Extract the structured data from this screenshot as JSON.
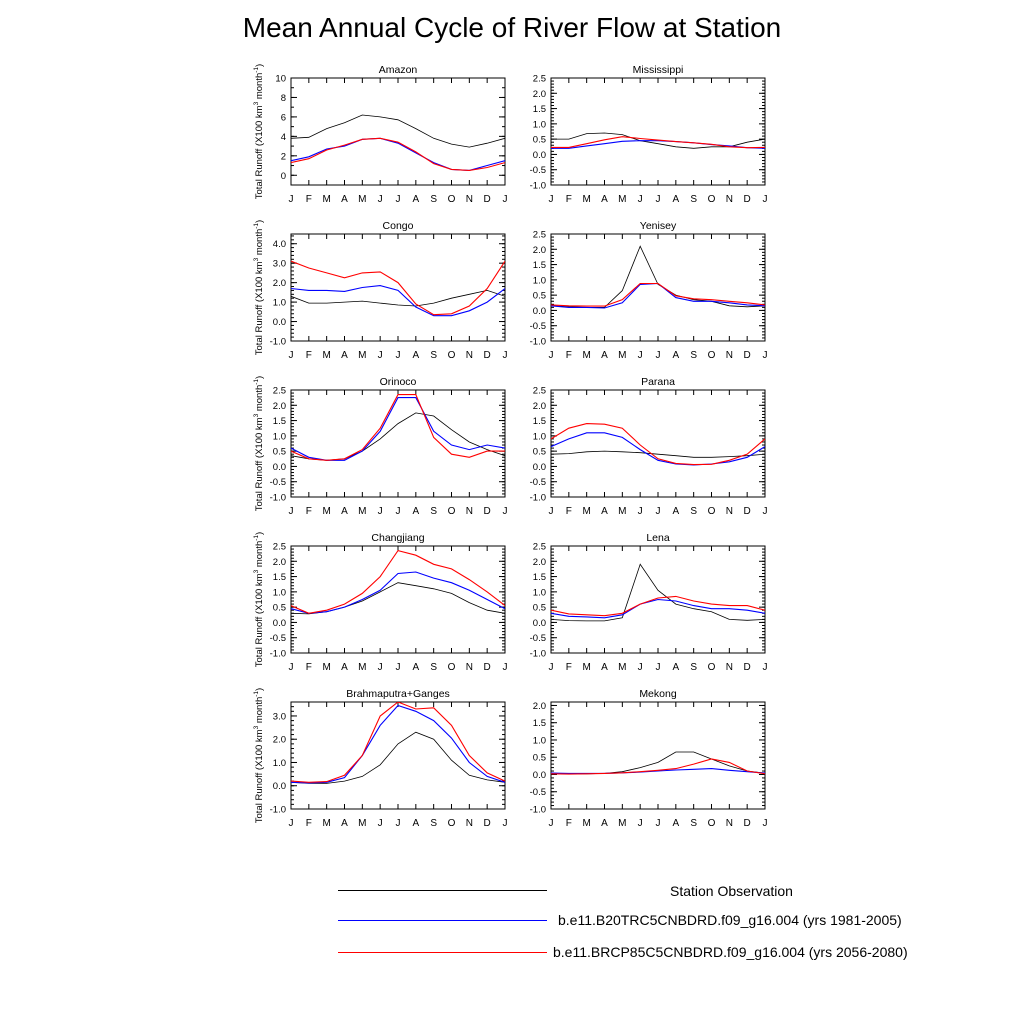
{
  "title": "Mean Annual Cycle of River Flow at Station",
  "chart_data": {
    "type": "line",
    "months": [
      "J",
      "F",
      "M",
      "A",
      "M",
      "J",
      "J",
      "A",
      "S",
      "O",
      "N",
      "D",
      "J"
    ],
    "ylabel": "Total Runoff (X100 km",
    "ylabel_sup": "3",
    "ylabel_mid": " month",
    "ylabel_sup2": "-1",
    "ylabel_end": ")",
    "colors": {
      "obs": "#000000",
      "hist": "#0000ff",
      "fut": "#ff0000"
    },
    "legend": [
      {
        "key": "obs",
        "label": "Station Observation"
      },
      {
        "key": "hist",
        "label": "b.e11.B20TRC5CNBDRD.f09_g16.004 (yrs 1981-2005)"
      },
      {
        "key": "fut",
        "label": "b.e11.BRCP85C5CNBDRD.f09_g16.004 (yrs 2056-2080)"
      }
    ],
    "panels": [
      {
        "name": "Amazon",
        "ylim": [
          -1,
          10
        ],
        "ticks": [
          0,
          2,
          4,
          6,
          8,
          10
        ],
        "tick_labels": [
          "0",
          "2",
          "4",
          "6",
          "8",
          "10"
        ],
        "minor_step": 1,
        "obs": [
          3.8,
          3.9,
          4.8,
          5.4,
          6.2,
          6.0,
          5.7,
          4.8,
          3.8,
          3.2,
          2.9,
          3.3,
          3.8
        ],
        "hist": [
          1.5,
          1.9,
          2.7,
          3.0,
          3.7,
          3.8,
          3.3,
          2.3,
          1.3,
          0.6,
          0.5,
          1.0,
          1.5
        ],
        "fut": [
          1.3,
          1.7,
          2.6,
          3.1,
          3.7,
          3.8,
          3.4,
          2.4,
          1.2,
          0.6,
          0.5,
          0.8,
          1.3
        ]
      },
      {
        "name": "Mississippi",
        "ylim": [
          -1,
          2.5
        ],
        "ticks": [
          -1,
          -0.5,
          0,
          0.5,
          1,
          1.5,
          2,
          2.5
        ],
        "tick_labels": [
          "-1.0",
          "-0.5",
          "0.0",
          "0.5",
          "1.0",
          "1.5",
          "2.0",
          "2.5"
        ],
        "minor_step": 0.1,
        "obs": [
          0.5,
          0.5,
          0.68,
          0.7,
          0.65,
          0.45,
          0.35,
          0.25,
          0.2,
          0.25,
          0.25,
          0.4,
          0.5
        ],
        "hist": [
          0.2,
          0.2,
          0.28,
          0.35,
          0.43,
          0.45,
          0.45,
          0.42,
          0.38,
          0.32,
          0.28,
          0.22,
          0.2
        ],
        "fut": [
          0.23,
          0.23,
          0.35,
          0.48,
          0.58,
          0.52,
          0.47,
          0.42,
          0.38,
          0.33,
          0.25,
          0.22,
          0.23
        ]
      },
      {
        "name": "Congo",
        "ylim": [
          -1,
          4.5
        ],
        "ticks": [
          -1,
          0,
          1,
          2,
          3,
          4
        ],
        "tick_labels": [
          "-1.0",
          "0.0",
          "1.0",
          "2.0",
          "3.0",
          "4.0"
        ],
        "minor_step": 0.2,
        "obs": [
          1.3,
          0.95,
          0.95,
          1.0,
          1.05,
          0.95,
          0.85,
          0.8,
          0.95,
          1.2,
          1.4,
          1.6,
          1.3
        ],
        "hist": [
          1.7,
          1.6,
          1.6,
          1.55,
          1.75,
          1.85,
          1.6,
          0.75,
          0.3,
          0.3,
          0.55,
          1.0,
          1.7
        ],
        "fut": [
          3.1,
          2.75,
          2.5,
          2.25,
          2.5,
          2.55,
          2.0,
          0.9,
          0.35,
          0.4,
          0.8,
          1.7,
          3.1
        ]
      },
      {
        "name": "Yenisey",
        "ylim": [
          -1,
          2.5
        ],
        "ticks": [
          -1,
          -0.5,
          0,
          0.5,
          1,
          1.5,
          2,
          2.5
        ],
        "tick_labels": [
          "-1.0",
          "-0.5",
          "0.0",
          "0.5",
          "1.0",
          "1.5",
          "2.0",
          "2.5"
        ],
        "minor_step": 0.1,
        "obs": [
          0.15,
          0.12,
          0.1,
          0.1,
          0.65,
          2.1,
          0.85,
          0.5,
          0.35,
          0.3,
          0.15,
          0.12,
          0.15
        ],
        "hist": [
          0.15,
          0.1,
          0.1,
          0.08,
          0.25,
          0.85,
          0.88,
          0.42,
          0.3,
          0.3,
          0.25,
          0.18,
          0.15
        ],
        "fut": [
          0.18,
          0.15,
          0.14,
          0.14,
          0.35,
          0.88,
          0.88,
          0.48,
          0.38,
          0.35,
          0.3,
          0.25,
          0.18
        ]
      },
      {
        "name": "Orinoco",
        "ylim": [
          -1,
          2.5
        ],
        "ticks": [
          -1,
          -0.5,
          0,
          0.5,
          1,
          1.5,
          2,
          2.5
        ],
        "tick_labels": [
          "-1.0",
          "-0.5",
          "0.0",
          "0.5",
          "1.0",
          "1.5",
          "2.0",
          "2.5"
        ],
        "minor_step": 0.1,
        "obs": [
          0.35,
          0.25,
          0.2,
          0.25,
          0.5,
          0.9,
          1.4,
          1.75,
          1.65,
          1.2,
          0.8,
          0.55,
          0.35
        ],
        "hist": [
          0.6,
          0.3,
          0.2,
          0.2,
          0.5,
          1.15,
          2.25,
          2.25,
          1.15,
          0.7,
          0.55,
          0.7,
          0.6
        ],
        "fut": [
          0.5,
          0.25,
          0.2,
          0.25,
          0.55,
          1.25,
          2.35,
          2.35,
          0.95,
          0.4,
          0.3,
          0.5,
          0.5
        ]
      },
      {
        "name": "Parana",
        "ylim": [
          -1,
          2.5
        ],
        "ticks": [
          -1,
          -0.5,
          0,
          0.5,
          1,
          1.5,
          2,
          2.5
        ],
        "tick_labels": [
          "-1.0",
          "-0.5",
          "0.0",
          "0.5",
          "1.0",
          "1.5",
          "2.0",
          "2.5"
        ],
        "minor_step": 0.1,
        "obs": [
          0.4,
          0.42,
          0.48,
          0.5,
          0.48,
          0.45,
          0.4,
          0.35,
          0.3,
          0.3,
          0.32,
          0.35,
          0.4
        ],
        "hist": [
          0.65,
          0.9,
          1.1,
          1.1,
          0.95,
          0.55,
          0.2,
          0.08,
          0.05,
          0.08,
          0.15,
          0.3,
          0.65
        ],
        "fut": [
          0.9,
          1.25,
          1.4,
          1.38,
          1.25,
          0.7,
          0.25,
          0.1,
          0.06,
          0.07,
          0.2,
          0.4,
          0.9
        ]
      },
      {
        "name": "Changjiang",
        "ylim": [
          -1,
          2.5
        ],
        "ticks": [
          -1,
          -0.5,
          0,
          0.5,
          1,
          1.5,
          2,
          2.5
        ],
        "tick_labels": [
          "-1.0",
          "-0.5",
          "0.0",
          "0.5",
          "1.0",
          "1.5",
          "2.0",
          "2.5"
        ],
        "minor_step": 0.1,
        "obs": [
          0.3,
          0.28,
          0.35,
          0.5,
          0.7,
          1.0,
          1.3,
          1.2,
          1.1,
          0.95,
          0.65,
          0.4,
          0.3
        ],
        "hist": [
          0.45,
          0.3,
          0.35,
          0.5,
          0.75,
          1.05,
          1.6,
          1.65,
          1.45,
          1.3,
          1.05,
          0.75,
          0.45
        ],
        "fut": [
          0.55,
          0.3,
          0.4,
          0.6,
          0.95,
          1.5,
          2.35,
          2.2,
          1.9,
          1.75,
          1.4,
          1.0,
          0.55
        ]
      },
      {
        "name": "Lena",
        "ylim": [
          -1,
          2.5
        ],
        "ticks": [
          -1,
          -0.5,
          0,
          0.5,
          1,
          1.5,
          2,
          2.5
        ],
        "tick_labels": [
          "-1.0",
          "-0.5",
          "0.0",
          "0.5",
          "1.0",
          "1.5",
          "2.0",
          "2.5"
        ],
        "minor_step": 0.1,
        "obs": [
          0.1,
          0.06,
          0.05,
          0.05,
          0.15,
          1.9,
          1.05,
          0.6,
          0.45,
          0.35,
          0.1,
          0.07,
          0.1
        ],
        "hist": [
          0.3,
          0.2,
          0.18,
          0.15,
          0.25,
          0.6,
          0.75,
          0.7,
          0.55,
          0.45,
          0.45,
          0.4,
          0.3
        ],
        "fut": [
          0.4,
          0.28,
          0.25,
          0.22,
          0.3,
          0.6,
          0.8,
          0.85,
          0.7,
          0.6,
          0.55,
          0.55,
          0.4
        ]
      },
      {
        "name": "Brahmaputra+Ganges",
        "ylim": [
          -1,
          3.6
        ],
        "ticks": [
          -1,
          0,
          1,
          2,
          3
        ],
        "tick_labels": [
          "-1.0",
          "0.0",
          "1.0",
          "2.0",
          "3.0"
        ],
        "minor_step": 0.2,
        "obs": [
          0.15,
          0.1,
          0.1,
          0.2,
          0.4,
          0.9,
          1.8,
          2.3,
          2.0,
          1.1,
          0.45,
          0.25,
          0.15
        ],
        "hist": [
          0.15,
          0.12,
          0.15,
          0.35,
          1.3,
          2.6,
          3.45,
          3.2,
          2.8,
          2.05,
          1.0,
          0.4,
          0.15
        ],
        "fut": [
          0.2,
          0.15,
          0.18,
          0.45,
          1.3,
          3.0,
          3.9,
          3.3,
          3.35,
          2.6,
          1.3,
          0.55,
          0.2
        ]
      },
      {
        "name": "Mekong",
        "ylim": [
          -1,
          2.1
        ],
        "ticks": [
          -1,
          -0.5,
          0,
          0.5,
          1,
          1.5,
          2
        ],
        "tick_labels": [
          "-1.0",
          "-0.5",
          "0.0",
          "0.5",
          "1.0",
          "1.5",
          "2.0"
        ],
        "minor_step": 0.1,
        "obs": [
          0.04,
          0.02,
          0.02,
          0.03,
          0.08,
          0.2,
          0.35,
          0.65,
          0.65,
          0.45,
          0.25,
          0.1,
          0.04
        ],
        "hist": [
          0.04,
          0.03,
          0.03,
          0.03,
          0.05,
          0.07,
          0.1,
          0.13,
          0.15,
          0.17,
          0.12,
          0.08,
          0.04
        ],
        "fut": [
          0.02,
          0.01,
          0.02,
          0.03,
          0.05,
          0.08,
          0.12,
          0.17,
          0.3,
          0.45,
          0.35,
          0.1,
          0.02
        ]
      }
    ]
  }
}
